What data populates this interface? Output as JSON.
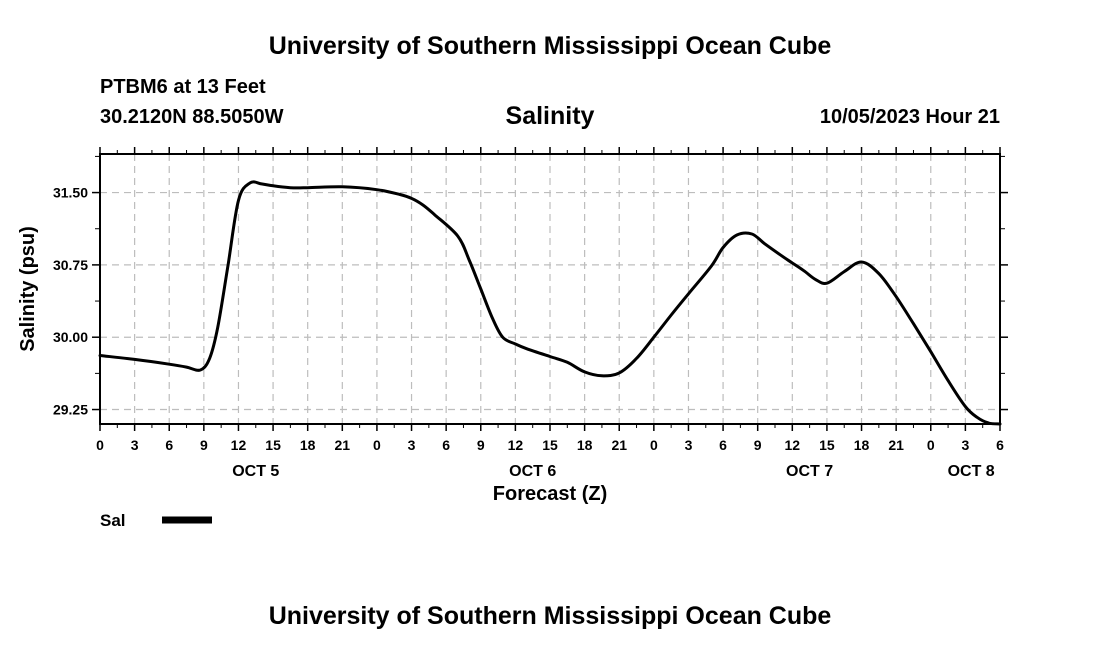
{
  "header": {
    "title": "University of Southern Mississippi Ocean Cube",
    "station": "PTBM6 at 13 Feet",
    "coords": "30.2120N 88.5050W",
    "variable": "Salinity",
    "datetime": "10/05/2023 Hour 21"
  },
  "legend": {
    "label": "Sal",
    "color": "#000000"
  },
  "footer": {
    "title": "University of Southern Mississippi Ocean Cube"
  },
  "chart_data": {
    "type": "line",
    "title": "Salinity",
    "xlabel": "Forecast (Z)",
    "ylabel": "Salinity (psu)",
    "xlim": [
      0,
      78
    ],
    "ylim": [
      29.1,
      31.9
    ],
    "grid": true,
    "legend_position": "bottom-left",
    "y_ticks": [
      29.25,
      30.0,
      30.75,
      31.5
    ],
    "y_tick_labels": [
      "29.25",
      "30.00",
      "30.75",
      "31.50"
    ],
    "x_ticks": [
      0,
      3,
      6,
      9,
      12,
      15,
      18,
      21,
      24,
      27,
      30,
      33,
      36,
      39,
      42,
      45,
      48,
      51,
      54,
      57,
      60,
      63,
      66,
      69,
      72,
      75,
      78
    ],
    "x_tick_labels": [
      "0",
      "3",
      "6",
      "9",
      "12",
      "15",
      "18",
      "21",
      "0",
      "3",
      "6",
      "9",
      "12",
      "15",
      "18",
      "21",
      "0",
      "3",
      "6",
      "9",
      "12",
      "15",
      "18",
      "21",
      "0",
      "3",
      "6"
    ],
    "date_labels": [
      {
        "label": "OCT 5",
        "x": 13.5
      },
      {
        "label": "OCT 6",
        "x": 37.5
      },
      {
        "label": "OCT 7",
        "x": 61.5
      },
      {
        "label": "OCT 8",
        "x": 75.5
      }
    ],
    "series": [
      {
        "name": "Sal",
        "color": "#000000",
        "x": [
          0,
          3,
          6,
          7.5,
          8.7,
          9.5,
          10.2,
          11.1,
          12,
          13,
          14,
          15,
          16.5,
          18,
          21,
          24,
          26,
          27,
          28,
          29,
          31,
          32,
          33,
          34,
          34.9,
          36,
          37,
          39,
          40.5,
          42,
          43.5,
          45,
          46.5,
          48,
          49.5,
          51,
          53,
          54,
          55.2,
          56.5,
          57.6,
          59,
          60,
          61,
          62,
          63,
          64.5,
          66,
          67.5,
          69,
          70.5,
          72,
          73.5,
          75,
          76,
          77,
          78
        ],
        "y": [
          29.81,
          29.77,
          29.72,
          29.69,
          29.66,
          29.78,
          30.1,
          30.75,
          31.42,
          31.6,
          31.59,
          31.57,
          31.55,
          31.55,
          31.56,
          31.53,
          31.48,
          31.44,
          31.37,
          31.27,
          31.05,
          30.8,
          30.5,
          30.2,
          30.0,
          29.93,
          29.88,
          29.8,
          29.74,
          29.64,
          29.6,
          29.63,
          29.78,
          30.0,
          30.23,
          30.45,
          30.74,
          30.93,
          31.06,
          31.07,
          30.97,
          30.85,
          30.77,
          30.69,
          30.6,
          30.56,
          30.68,
          30.78,
          30.66,
          30.42,
          30.14,
          29.85,
          29.55,
          29.28,
          29.17,
          29.11,
          29.1
        ]
      }
    ]
  }
}
